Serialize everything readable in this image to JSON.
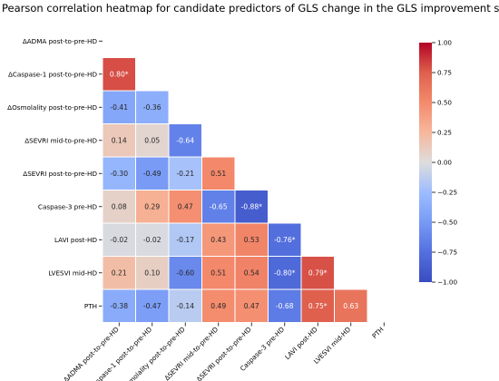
{
  "chart_data": {
    "type": "heatmap",
    "title": "Pearson correlation heatmap for candidate predictors of GLS change in the GLS improvement subgroup",
    "variables": [
      "ΔADMA post-to-pre-HD",
      "ΔCaspase-1 post-to-pre-HD",
      "ΔOsmolality post-to-pre-HD",
      "ΔSEVRI mid-to-pre-HD",
      "ΔSEVRI post-to-pre-HD",
      "Caspase-3 pre-HD",
      "LAVI post-HD",
      "LVESVI mid-HD",
      "PTH"
    ],
    "lower_triangle": [
      [],
      [
        0.8
      ],
      [
        -0.41,
        -0.36
      ],
      [
        0.14,
        0.05,
        -0.64
      ],
      [
        -0.3,
        -0.49,
        -0.21,
        0.51
      ],
      [
        0.08,
        0.29,
        0.47,
        -0.65,
        -0.88
      ],
      [
        -0.02,
        -0.02,
        -0.17,
        0.43,
        0.53,
        -0.76
      ],
      [
        0.21,
        0.1,
        -0.6,
        0.51,
        0.54,
        -0.8,
        0.79
      ],
      [
        -0.38,
        -0.47,
        -0.14,
        0.49,
        0.47,
        -0.68,
        0.75,
        0.63
      ]
    ],
    "labels": [
      [],
      [
        "0.80*"
      ],
      [
        "-0.41",
        "-0.36"
      ],
      [
        "0.14",
        "0.05",
        "-0.64"
      ],
      [
        "-0.30",
        "-0.49",
        "-0.21",
        "0.51"
      ],
      [
        "0.08",
        "0.29",
        "0.47",
        "-0.65",
        "-0.88*"
      ],
      [
        "-0.02",
        "-0.02",
        "-0.17",
        "0.43",
        "0.53",
        "-0.76*"
      ],
      [
        "0.21",
        "0.10",
        "-0.60",
        "0.51",
        "0.54",
        "-0.80*",
        "0.79*"
      ],
      [
        "-0.38",
        "-0.47",
        "-0.14",
        "0.49",
        "0.47",
        "-0.68",
        "0.75*",
        "0.63"
      ]
    ],
    "colorscale": "coolwarm",
    "vmin": -1.0,
    "vmax": 1.0,
    "colorbar_ticks": [
      "1.00",
      "0.75",
      "0.50",
      "0.25",
      "0.00",
      "−0.25",
      "−0.50",
      "−0.75",
      "−1.00"
    ],
    "colorbar_tick_values": [
      1.0,
      0.75,
      0.5,
      0.25,
      0.0,
      -0.25,
      -0.5,
      -0.75,
      -1.0
    ]
  }
}
